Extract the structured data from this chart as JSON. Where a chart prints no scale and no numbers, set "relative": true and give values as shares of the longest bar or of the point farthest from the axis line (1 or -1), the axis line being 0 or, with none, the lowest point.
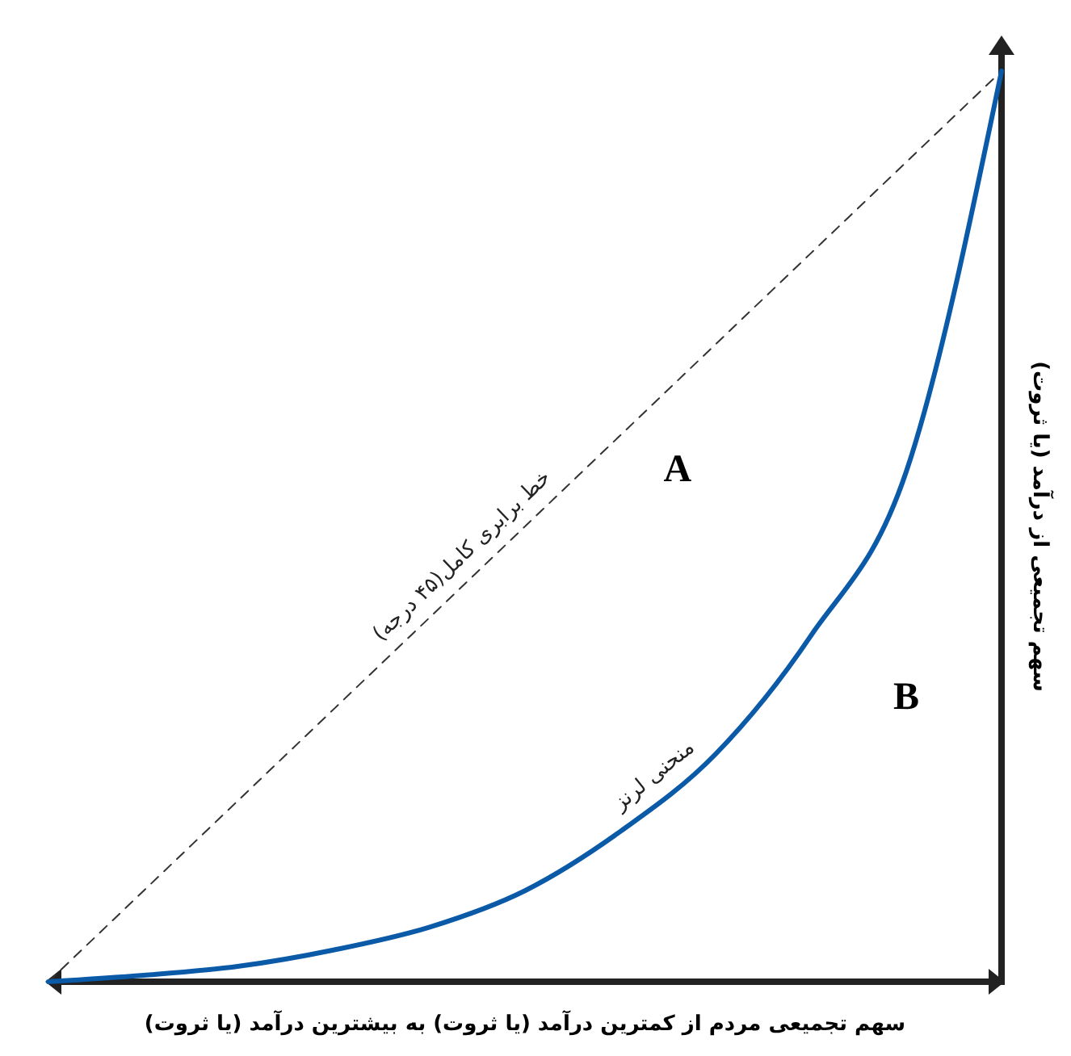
{
  "chart_data": {
    "type": "line",
    "relative": true,
    "xlabel": "سهم تجمیعی مردم از کمترین درآمد (یا ثروت) به بیشترین درآمد (یا ثروت)",
    "ylabel": "سهم تجمیعی از درآمد (یا ثروت)",
    "categories": [
      null,
      null,
      null,
      null,
      null,
      null,
      null,
      null,
      null,
      null,
      null
    ],
    "legend": false,
    "marker": "none",
    "series": [
      {
        "name": "خط برابری کامل(۴۵ درجه)",
        "color": "#333333",
        "line_style": "dashed",
        "values": [
          0,
          0.1,
          0.2,
          0.3,
          0.4,
          0.5,
          0.6,
          0.7,
          0.8,
          0.9,
          1
        ]
      },
      {
        "name": "منحنی لرنز",
        "color": "#0a5aa8",
        "line_style": "solid",
        "values": [
          0,
          0.007,
          0.017,
          0.035,
          0.06,
          0.1,
          0.165,
          0.25,
          0.38,
          0.56,
          1
        ]
      }
    ],
    "annotations": [
      "A",
      "B"
    ]
  }
}
